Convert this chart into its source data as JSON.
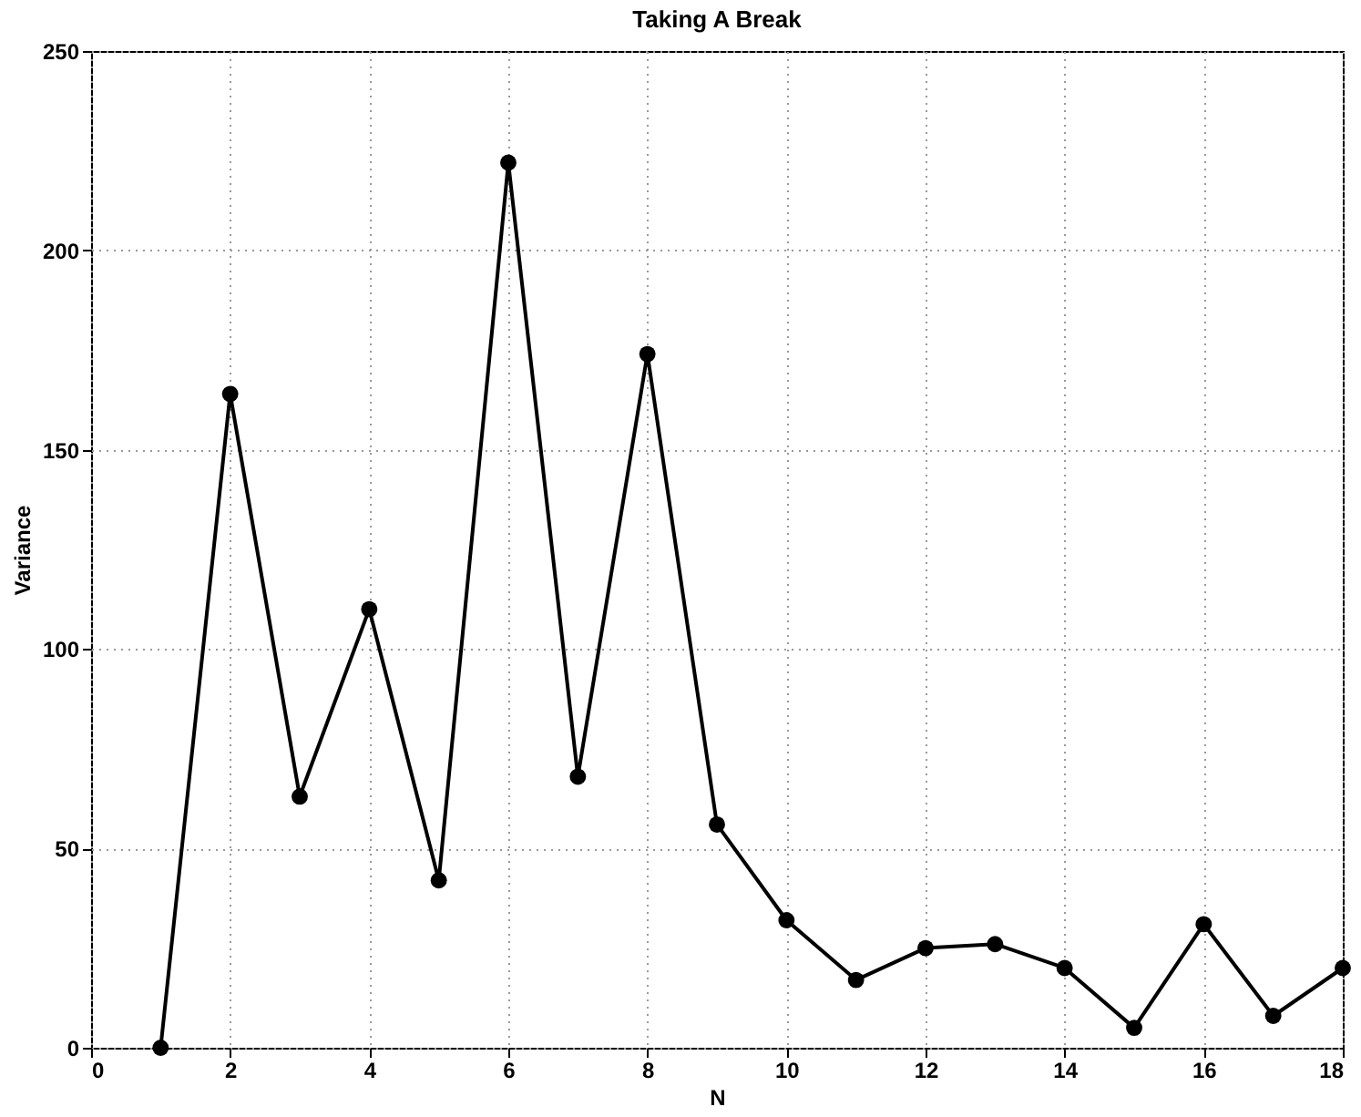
{
  "chart_data": {
    "type": "line",
    "title": "Taking A Break",
    "xlabel": "N",
    "ylabel": "Variance",
    "x": [
      1,
      2,
      3,
      4,
      5,
      6,
      7,
      8,
      9,
      10,
      11,
      12,
      13,
      14,
      15,
      16,
      17,
      18
    ],
    "series": [
      {
        "color": "#000000",
        "values": [
          0,
          164,
          63,
          110,
          42,
          222,
          68,
          174,
          56,
          32,
          17,
          25,
          26,
          20,
          5,
          31,
          8,
          20
        ]
      }
    ],
    "xlim": [
      0,
      18
    ],
    "xticks": [
      0,
      2,
      4,
      6,
      8,
      10,
      12,
      14,
      16,
      18
    ],
    "ylim": [
      0,
      250
    ],
    "yticks": [
      0,
      50,
      100,
      150,
      200,
      250
    ],
    "grid": true,
    "marker": "circle",
    "line_style": "solid"
  }
}
